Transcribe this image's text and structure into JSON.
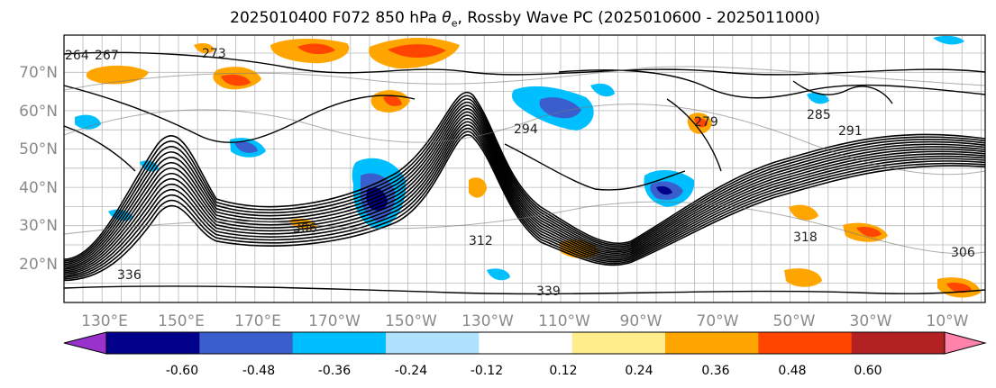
{
  "title": {
    "prefix": "2025010400 F072 850 hPa ",
    "symbol": "θ",
    "subscript": "e",
    "suffix": ", Rossby Wave PC (2025010600 - 2025011000)"
  },
  "map": {
    "lat_labels": [
      "70°N",
      "60°N",
      "50°N",
      "40°N",
      "30°N",
      "20°N"
    ],
    "lon_labels": [
      "130°E",
      "150°E",
      "170°E",
      "170°W",
      "150°W",
      "130°W",
      "110°W",
      "90°W",
      "70°W",
      "50°W",
      "30°W",
      "10°W"
    ],
    "contour_labels": [
      "264",
      "267",
      "273",
      "294",
      "279",
      "285",
      "291",
      "306",
      "312",
      "318",
      "306",
      "336",
      "339"
    ],
    "anomalies": [
      {
        "name": "north-pacific-positive-1",
        "level": "0.48"
      },
      {
        "name": "bering-positive",
        "level": "0.36"
      },
      {
        "name": "alaska-positive",
        "level": "0.36"
      },
      {
        "name": "central-pacific-negative",
        "level": "-0.48"
      },
      {
        "name": "canada-negative",
        "level": "-0.36"
      },
      {
        "name": "east-us-negative",
        "level": "-0.48"
      },
      {
        "name": "hudson-positive",
        "level": "0.36"
      }
    ]
  },
  "colorbar": {
    "tick_labels": [
      "-0.60",
      "-0.48",
      "-0.36",
      "-0.24",
      "-0.12",
      "0.12",
      "0.24",
      "0.36",
      "0.48",
      "0.60"
    ],
    "colors": [
      "#9932cc",
      "#00008b",
      "#3a5fcd",
      "#00bfff",
      "#b0e2ff",
      "#ffffff",
      "#ffec8b",
      "#ffa500",
      "#ff4500",
      "#b22222",
      "#ff82ab"
    ]
  }
}
